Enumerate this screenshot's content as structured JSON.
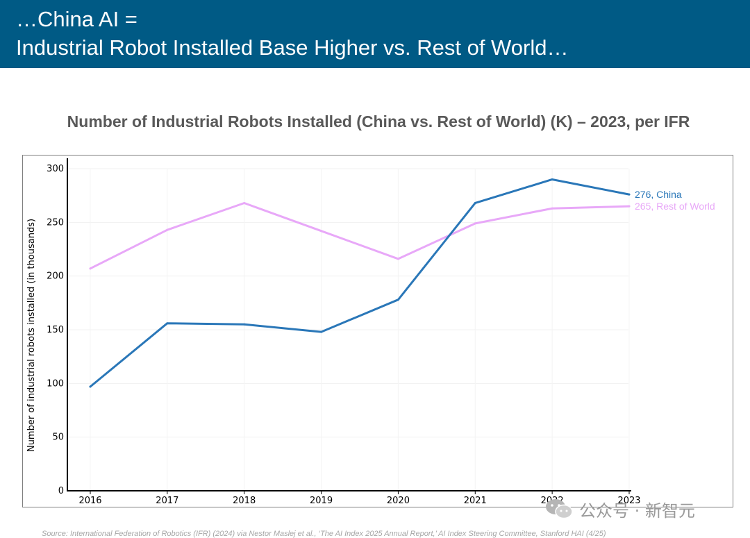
{
  "header": {
    "line1": "…China AI =",
    "line2": "Industrial Robot Installed Base Higher vs. Rest of World…"
  },
  "chart_data": {
    "type": "line",
    "title": "Number of Industrial Robots Installed (China vs. Rest of World) (K) – 2023, per IFR",
    "xlabel": "",
    "ylabel": "Number of industrial robots installed (in thousands)",
    "categories": [
      "2016",
      "2017",
      "2018",
      "2019",
      "2020",
      "2021",
      "2022",
      "2023"
    ],
    "ylim": [
      0,
      300
    ],
    "yticks": [
      0,
      50,
      100,
      150,
      200,
      250,
      300
    ],
    "grid": true,
    "series": [
      {
        "name": "China",
        "color": "#2a77b8",
        "values": [
          97,
          156,
          155,
          148,
          178,
          268,
          290,
          276
        ],
        "end_value_label": "276,",
        "end_name_label": "China"
      },
      {
        "name": "Rest of World",
        "color": "#e8a8f8",
        "values": [
          207,
          243,
          268,
          242,
          216,
          249,
          263,
          265
        ],
        "end_value_label": "265,",
        "end_name_label": "Rest of World"
      }
    ]
  },
  "watermark": {
    "text": "公众号 · 新智元",
    "icon": "wechat-icon"
  },
  "source": "Source: International Federation of Robotics (IFR) (2024) via Nestor Maslej et al., ‘The AI Index 2025 Annual Report,’ AI Index Steering Committee, Stanford HAI (4/25)"
}
